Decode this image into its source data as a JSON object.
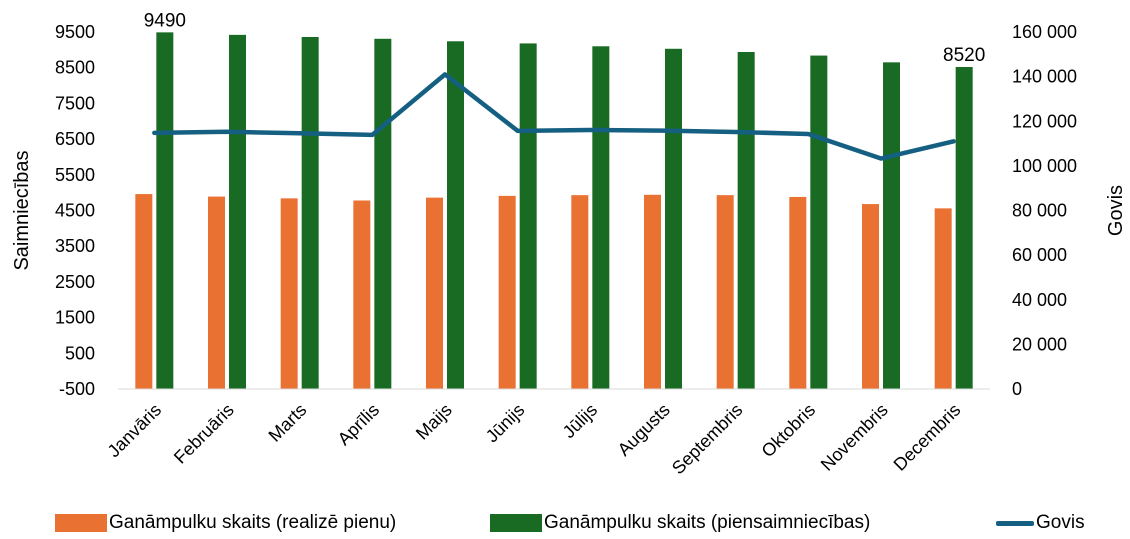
{
  "chart_data": {
    "type": "bar+line",
    "categories": [
      "Janvāris",
      "Februāris",
      "Marts",
      "Aprīlis",
      "Maijs",
      "Jūnijs",
      "Jūlijs",
      "Augusts",
      "Septembris",
      "Oktobris",
      "Novembris",
      "Decembris"
    ],
    "series": [
      {
        "name": "Ganāmpulku skaits (realizē pienu)",
        "type": "bar",
        "axis": "left",
        "color": "#e97132",
        "values": [
          4960,
          4890,
          4840,
          4780,
          4860,
          4910,
          4930,
          4940,
          4930,
          4880,
          4680,
          4560
        ]
      },
      {
        "name": "Ganāmpulku skaits (piensaimniecības)",
        "type": "bar",
        "axis": "left",
        "color": "#196b24",
        "values": [
          9490,
          9420,
          9360,
          9310,
          9240,
          9180,
          9100,
          9030,
          8940,
          8840,
          8650,
          8520
        ]
      },
      {
        "name": "Govis",
        "type": "line",
        "axis": "right",
        "color": "#156082",
        "values": [
          114800,
          115300,
          114600,
          113900,
          141000,
          115700,
          116100,
          115800,
          115200,
          114300,
          103300,
          111000
        ]
      }
    ],
    "data_labels": [
      {
        "text": "9490",
        "series": 1,
        "index": 0
      },
      {
        "text": "8520",
        "series": 1,
        "index": 11
      }
    ],
    "y_left": {
      "label": "Saimniecības",
      "range": [
        -500,
        9500
      ],
      "ticks": [
        "9500",
        "8500",
        "7500",
        "6500",
        "5500",
        "4500",
        "3500",
        "2500",
        "1500",
        "500",
        "-500"
      ]
    },
    "y_right": {
      "label": "Govis",
      "range": [
        0,
        160000
      ],
      "ticks": [
        "160 000",
        "140 000",
        "120 000",
        "100 000",
        "80 000",
        "60 000",
        "40 000",
        "20 000",
        "0"
      ]
    },
    "grid": false,
    "legend_position": "bottom"
  }
}
